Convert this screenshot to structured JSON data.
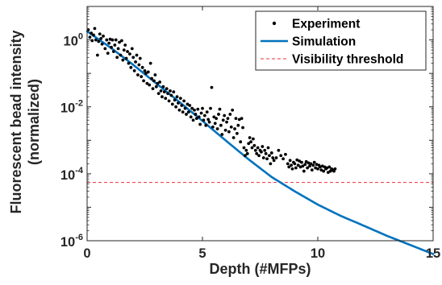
{
  "chart_data": {
    "type": "scatter",
    "xlabel": "Depth (#MFPs)",
    "ylabel_lines": [
      "Fluorescent bead intensity",
      "(normalized)"
    ],
    "xlim": [
      0,
      15
    ],
    "ylim": [
      1e-06,
      10
    ],
    "yscale": "log",
    "xticks": [
      0,
      5,
      10,
      15
    ],
    "xtick_labels": [
      "0",
      "5",
      "10",
      "15"
    ],
    "yticks": [
      1e-06,
      0.0001,
      0.01,
      1
    ],
    "ytick_labels": [
      {
        "base": "10",
        "exp": "-6"
      },
      {
        "base": "10",
        "exp": "-4"
      },
      {
        "base": "10",
        "exp": "-2"
      },
      {
        "base": "10",
        "exp": "0"
      }
    ],
    "grid": false,
    "legend_position": "top-right",
    "series": [
      {
        "name": "Experiment",
        "kind": "scatter",
        "color": "#000000",
        "points": [
          [
            0.05,
            2.0
          ],
          [
            0.12,
            1.2
          ],
          [
            0.18,
            1.6
          ],
          [
            0.22,
            0.95
          ],
          [
            0.28,
            1.4
          ],
          [
            0.33,
            2.2
          ],
          [
            0.38,
            1.0
          ],
          [
            0.45,
            0.35
          ],
          [
            0.5,
            0.9
          ],
          [
            0.55,
            1.5
          ],
          [
            0.6,
            1.1
          ],
          [
            0.65,
            0.75
          ],
          [
            0.7,
            1.3
          ],
          [
            0.78,
            0.55
          ],
          [
            0.85,
            1.0
          ],
          [
            0.9,
            0.4
          ],
          [
            0.95,
            0.8
          ],
          [
            1.0,
            1.05
          ],
          [
            1.05,
            0.6
          ],
          [
            1.1,
            1.0
          ],
          [
            1.15,
            0.45
          ],
          [
            1.2,
            0.7
          ],
          [
            1.25,
            1.0
          ],
          [
            1.3,
            0.3
          ],
          [
            1.35,
            0.55
          ],
          [
            1.4,
            0.85
          ],
          [
            1.45,
            0.35
          ],
          [
            1.5,
            0.95
          ],
          [
            1.55,
            0.25
          ],
          [
            1.6,
            0.5
          ],
          [
            1.65,
            0.7
          ],
          [
            1.7,
            0.28
          ],
          [
            1.75,
            0.45
          ],
          [
            1.8,
            0.2
          ],
          [
            1.85,
            0.38
          ],
          [
            1.9,
            0.15
          ],
          [
            1.95,
            0.55
          ],
          [
            2.0,
            0.3
          ],
          [
            2.05,
            0.12
          ],
          [
            2.1,
            0.22
          ],
          [
            2.15,
            0.35
          ],
          [
            2.2,
            0.09
          ],
          [
            2.25,
            0.18
          ],
          [
            2.3,
            0.28
          ],
          [
            2.35,
            0.08
          ],
          [
            2.4,
            0.15
          ],
          [
            2.45,
            0.06
          ],
          [
            2.5,
            0.12
          ],
          [
            2.55,
            0.1
          ],
          [
            2.6,
            0.05
          ],
          [
            2.65,
            0.11
          ],
          [
            2.7,
            0.045
          ],
          [
            2.75,
            0.2
          ],
          [
            2.8,
            0.07
          ],
          [
            2.85,
            0.035
          ],
          [
            2.9,
            0.06
          ],
          [
            2.95,
            0.09
          ],
          [
            3.0,
            0.04
          ],
          [
            3.05,
            0.05
          ],
          [
            3.1,
            0.025
          ],
          [
            3.15,
            0.055
          ],
          [
            3.2,
            0.03
          ],
          [
            3.25,
            0.02
          ],
          [
            3.3,
            0.04
          ],
          [
            3.35,
            0.028
          ],
          [
            3.4,
            0.018
          ],
          [
            3.45,
            0.035
          ],
          [
            3.5,
            0.025
          ],
          [
            3.55,
            0.015
          ],
          [
            3.6,
            0.03
          ],
          [
            3.65,
            0.022
          ],
          [
            3.7,
            0.012
          ],
          [
            3.75,
            0.028
          ],
          [
            3.8,
            0.016
          ],
          [
            3.85,
            0.01
          ],
          [
            3.9,
            0.02
          ],
          [
            3.95,
            0.013
          ],
          [
            4.0,
            0.008
          ],
          [
            4.05,
            0.018
          ],
          [
            4.1,
            0.011
          ],
          [
            4.15,
            0.007
          ],
          [
            4.2,
            0.015
          ],
          [
            4.25,
            0.009
          ],
          [
            4.3,
            0.006
          ],
          [
            4.35,
            0.012
          ],
          [
            4.4,
            0.007
          ],
          [
            4.45,
            0.011
          ],
          [
            4.5,
            0.005
          ],
          [
            4.55,
            0.009
          ],
          [
            4.6,
            0.004
          ],
          [
            4.65,
            0.008
          ],
          [
            4.7,
            0.006
          ],
          [
            4.75,
            0.0045
          ],
          [
            4.8,
            0.0085
          ],
          [
            4.85,
            0.005
          ],
          [
            4.9,
            0.003
          ],
          [
            4.95,
            0.0065
          ],
          [
            5.0,
            0.009
          ],
          [
            5.05,
            0.004
          ],
          [
            5.1,
            0.0055
          ],
          [
            5.15,
            0.0028
          ],
          [
            5.2,
            0.007
          ],
          [
            5.25,
            0.0042
          ],
          [
            5.3,
            0.0035
          ],
          [
            5.35,
            0.009
          ],
          [
            5.4,
            0.038
          ],
          [
            5.45,
            0.0025
          ],
          [
            5.5,
            0.005
          ],
          [
            5.55,
            0.0032
          ],
          [
            5.6,
            0.0045
          ],
          [
            5.65,
            0.0022
          ],
          [
            5.7,
            0.006
          ],
          [
            5.75,
            0.0085
          ],
          [
            5.8,
            0.0028
          ],
          [
            5.85,
            0.0015
          ],
          [
            5.9,
            0.004
          ],
          [
            5.95,
            0.0055
          ],
          [
            6.0,
            0.002
          ],
          [
            6.05,
            0.0035
          ],
          [
            6.1,
            0.0045
          ],
          [
            6.15,
            0.0018
          ],
          [
            6.2,
            0.006
          ],
          [
            6.25,
            0.0025
          ],
          [
            6.3,
            0.008
          ],
          [
            6.35,
            0.0012
          ],
          [
            6.4,
            0.0022
          ],
          [
            6.45,
            0.0045
          ],
          [
            6.5,
            0.0016
          ],
          [
            6.55,
            0.0028
          ],
          [
            6.6,
            0.0042
          ],
          [
            6.65,
            0.0009
          ],
          [
            6.7,
            0.0045
          ],
          [
            6.75,
            0.0024
          ],
          [
            6.8,
            0.0006
          ],
          [
            6.85,
            0.00035
          ],
          [
            6.9,
            0.0005
          ],
          [
            6.95,
            0.0004
          ],
          [
            7.0,
            0.0008
          ],
          [
            7.05,
            0.0012
          ],
          [
            7.1,
            0.0009
          ],
          [
            7.15,
            0.0006
          ],
          [
            7.2,
            0.0011
          ],
          [
            7.25,
            0.0007
          ],
          [
            7.3,
            0.0005
          ],
          [
            7.35,
            0.0004
          ],
          [
            7.4,
            0.0006
          ],
          [
            7.45,
            0.00035
          ],
          [
            7.5,
            0.0005
          ],
          [
            7.55,
            0.00045
          ],
          [
            7.6,
            0.00065
          ],
          [
            7.65,
            0.0003
          ],
          [
            7.7,
            0.0005
          ],
          [
            7.75,
            0.0004
          ],
          [
            7.8,
            0.00028
          ],
          [
            7.85,
            0.0006
          ],
          [
            7.9,
            0.00035
          ],
          [
            7.95,
            0.0002
          ],
          [
            8.0,
            0.00042
          ],
          [
            8.05,
            0.0003
          ],
          [
            8.1,
            0.00025
          ],
          [
            8.2,
            0.0003
          ],
          [
            8.3,
            0.0005
          ],
          [
            8.4,
            0.00035
          ],
          [
            8.5,
            0.00028
          ],
          [
            8.6,
            0.00038
          ],
          [
            8.7,
            0.0002
          ],
          [
            8.75,
            0.00016
          ],
          [
            8.8,
            0.00025
          ],
          [
            8.85,
            0.00018
          ],
          [
            8.9,
            0.00014
          ],
          [
            8.95,
            0.00022
          ],
          [
            9.0,
            0.0002
          ],
          [
            9.05,
            0.00015
          ],
          [
            9.1,
            0.00026
          ],
          [
            9.15,
            0.00018
          ],
          [
            9.2,
            0.00024
          ],
          [
            9.25,
            0.00016
          ],
          [
            9.3,
            0.00022
          ],
          [
            9.35,
            0.00017
          ],
          [
            9.4,
            0.00012
          ],
          [
            9.45,
            0.00019
          ],
          [
            9.5,
            0.00023
          ],
          [
            9.55,
            0.00015
          ],
          [
            9.6,
            0.00021
          ],
          [
            9.65,
            0.00017
          ],
          [
            9.7,
            0.0002
          ],
          [
            9.75,
            0.00013
          ],
          [
            9.8,
            0.00018
          ],
          [
            9.85,
            0.00022
          ],
          [
            9.9,
            0.00015
          ],
          [
            9.95,
            0.00019
          ],
          [
            10.0,
            0.00014
          ],
          [
            10.05,
            0.00018
          ],
          [
            10.1,
            0.00016
          ],
          [
            10.15,
            0.00013
          ],
          [
            10.2,
            0.00017
          ],
          [
            10.25,
            0.00012
          ],
          [
            10.3,
            0.00016
          ],
          [
            10.35,
            0.00014
          ],
          [
            10.4,
            0.00015
          ],
          [
            10.45,
            0.00011
          ],
          [
            10.5,
            0.00016
          ],
          [
            10.55,
            0.00012
          ],
          [
            10.6,
            0.00014
          ],
          [
            10.65,
            0.00013
          ],
          [
            10.7,
            0.00012
          ],
          [
            10.75,
            0.00014
          ]
        ]
      },
      {
        "name": "Simulation",
        "kind": "line",
        "color": "#0072BD",
        "points": [
          [
            0,
            1.8
          ],
          [
            1,
            0.6
          ],
          [
            2,
            0.18
          ],
          [
            3,
            0.05
          ],
          [
            4,
            0.014
          ],
          [
            5,
            0.0038
          ],
          [
            6,
            0.001
          ],
          [
            7,
            0.00027
          ],
          [
            8,
            8e-05
          ],
          [
            9,
            3e-05
          ],
          [
            10,
            1.2e-05
          ],
          [
            11,
            5.5e-06
          ],
          [
            12,
            2.8e-06
          ],
          [
            13,
            1.4e-06
          ],
          [
            14,
            7.5e-07
          ],
          [
            15,
            4e-07
          ]
        ]
      },
      {
        "name": "Visibility threshold",
        "kind": "hline",
        "color": "#E8303A",
        "y": 5.5e-05
      }
    ]
  }
}
